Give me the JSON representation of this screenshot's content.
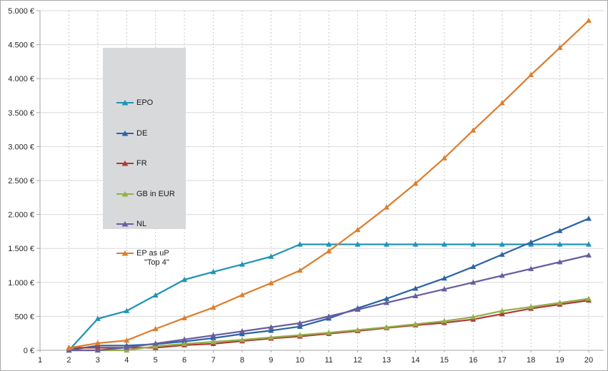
{
  "figure": {
    "background": "#ffffff",
    "border_color": "#a9a9a9",
    "text_color": "#262626",
    "gridline_color": "#d9d9d9",
    "vertical_gridline_color": "#c8c8c8",
    "axis_color": "#a6a6a6"
  },
  "legend": {
    "background": "#d7d9db",
    "entries": [
      {
        "label": "EPO",
        "label2": "",
        "color": "#2094b4",
        "marker": "triangle"
      },
      {
        "label": "DE",
        "label2": "",
        "color": "#2b64a7",
        "marker": "triangle"
      },
      {
        "label": "FR",
        "label2": "",
        "color": "#af3b32",
        "marker": "triangle"
      },
      {
        "label": "GB in EUR",
        "label2": "",
        "color": "#94af4c",
        "marker": "triangle"
      },
      {
        "label": "NL",
        "label2": "",
        "color": "#675e9e",
        "marker": "triangle"
      },
      {
        "label": "EP as uP",
        "label2": "\"Top 4\"",
        "color": "#dd7e2e",
        "marker": "triangle"
      }
    ]
  },
  "chart_data": {
    "type": "line",
    "title": "",
    "xlabel": "",
    "ylabel": "",
    "grid": {
      "horizontal": "solid",
      "vertical": "dashed"
    },
    "legend_position": "inside-upper-left",
    "x_axis": {
      "range": [
        1,
        20
      ],
      "tick_labels": [
        "1",
        "2",
        "3",
        "4",
        "5",
        "6",
        "7",
        "8",
        "9",
        "10",
        "11",
        "12",
        "13",
        "14",
        "15",
        "16",
        "17",
        "18",
        "19",
        "20"
      ]
    },
    "y_axis": {
      "range": [
        0,
        5000
      ],
      "tick_values": [
        0,
        500,
        1000,
        1500,
        2000,
        2500,
        3000,
        3500,
        4000,
        4500,
        5000
      ],
      "tick_labels": [
        "0 €",
        "500 €",
        "1.000 €",
        "1.500 €",
        "2.000 €",
        "2.500 €",
        "3.000 €",
        "3.500 €",
        "4.000 €",
        "4.500 €",
        "5.000 €"
      ],
      "unit": "EUR"
    },
    "x": [
      2,
      3,
      4,
      5,
      6,
      7,
      8,
      9,
      10,
      11,
      12,
      13,
      14,
      15,
      16,
      17,
      18,
      19,
      20
    ],
    "series": [
      {
        "name": "EPO",
        "color": "#2094b4",
        "marker": "triangle",
        "values": [
          0,
          465,
          580,
          810,
          1040,
          1155,
          1265,
          1380,
          1560,
          1560,
          1560,
          1560,
          1560,
          1560,
          1560,
          1560,
          1560,
          1560,
          1560
        ]
      },
      {
        "name": "DE",
        "color": "#2b64a7",
        "marker": "triangle",
        "values": [
          0,
          70,
          70,
          90,
          130,
          180,
          240,
          290,
          350,
          470,
          620,
          760,
          910,
          1060,
          1230,
          1410,
          1590,
          1760,
          1940
        ]
      },
      {
        "name": "FR",
        "color": "#af3b32",
        "marker": "triangle",
        "values": [
          38,
          38,
          38,
          38,
          76,
          96,
          136,
          175,
          205,
          245,
          285,
          330,
          370,
          405,
          455,
          535,
          615,
          675,
          735
        ]
      },
      {
        "name": "GB in EUR",
        "color": "#94af4c",
        "marker": "triangle",
        "values": [
          0,
          0,
          0,
          60,
          95,
          125,
          155,
          190,
          225,
          260,
          300,
          340,
          385,
          430,
          490,
          580,
          640,
          700,
          760
        ]
      },
      {
        "name": "NL",
        "color": "#675e9e",
        "marker": "triangle",
        "values": [
          0,
          0,
          40,
          100,
          160,
          220,
          280,
          340,
          400,
          500,
          600,
          700,
          800,
          900,
          1000,
          1100,
          1200,
          1300,
          1400
        ]
      },
      {
        "name": "EP as uP \"Top 4\"",
        "color": "#dd7e2e",
        "marker": "triangle",
        "values": [
          35,
          105,
          145,
          315,
          475,
          630,
          815,
          990,
          1175,
          1460,
          1775,
          2105,
          2455,
          2830,
          3240,
          3640,
          4055,
          4455,
          4855
        ]
      }
    ]
  }
}
